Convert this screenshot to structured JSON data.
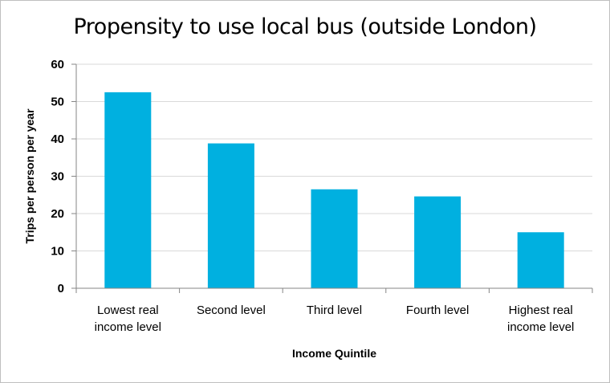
{
  "chart_data": {
    "type": "bar",
    "title": "Propensity to use local bus (outside London)",
    "xlabel": "Income Quintile",
    "ylabel": "Trips per person per year",
    "categories": [
      [
        "Lowest real",
        "income level"
      ],
      [
        "Second level"
      ],
      [
        "Third level"
      ],
      [
        "Fourth level"
      ],
      [
        "Highest real",
        "income level"
      ]
    ],
    "values": [
      52.5,
      38.8,
      26.5,
      24.6,
      15
    ],
    "ylim": [
      0,
      60
    ],
    "yticks": [
      0,
      10,
      20,
      30,
      40,
      50,
      60
    ],
    "bar_color": "#00b0e0",
    "grid": true,
    "legend": "none"
  }
}
